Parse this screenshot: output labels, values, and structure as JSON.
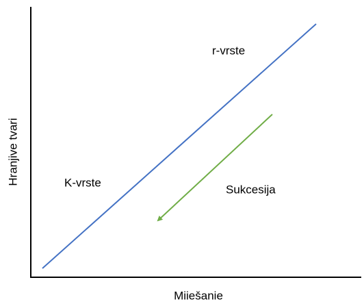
{
  "axes": {
    "x_label": "Miiešanie",
    "y_label": "Hranjive tvari"
  },
  "regions": {
    "upper": "r-vrste",
    "lower": "K-vrste"
  },
  "arrow": {
    "label": "Sukcesija"
  }
}
